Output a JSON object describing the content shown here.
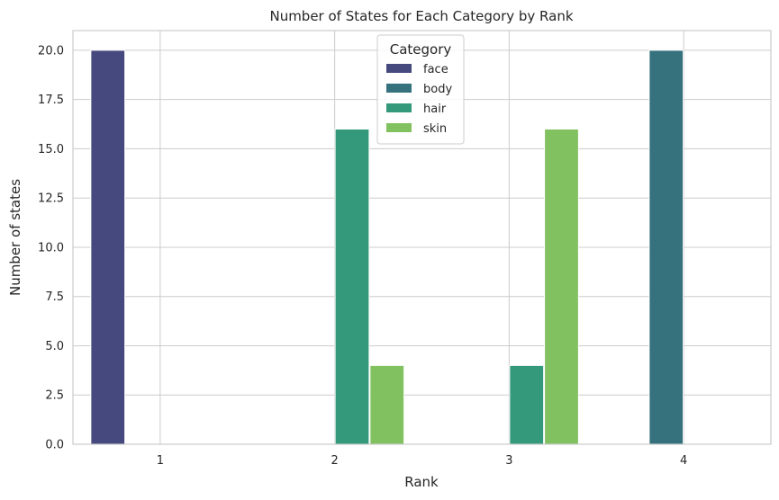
{
  "chart_data": {
    "type": "bar",
    "title": "Number of States for Each Category by Rank",
    "xlabel": "Rank",
    "ylabel": "Number of states",
    "categories": [
      "1",
      "2",
      "3",
      "4"
    ],
    "ylim": [
      0,
      21
    ],
    "yticks": [
      "0.0",
      "2.5",
      "5.0",
      "7.5",
      "10.0",
      "12.5",
      "15.0",
      "17.5",
      "20.0"
    ],
    "grid": true,
    "legend": {
      "title": "Category",
      "placement": "top-center"
    },
    "series": [
      {
        "name": "face",
        "color": "#46497e",
        "values": [
          20,
          0,
          0,
          0
        ]
      },
      {
        "name": "body",
        "color": "#35727e",
        "values": [
          0,
          0,
          0,
          20
        ]
      },
      {
        "name": "hair",
        "color": "#33997a",
        "values": [
          0,
          16,
          4,
          0
        ]
      },
      {
        "name": "skin",
        "color": "#81c15f",
        "values": [
          0,
          4,
          16,
          0
        ]
      }
    ]
  }
}
